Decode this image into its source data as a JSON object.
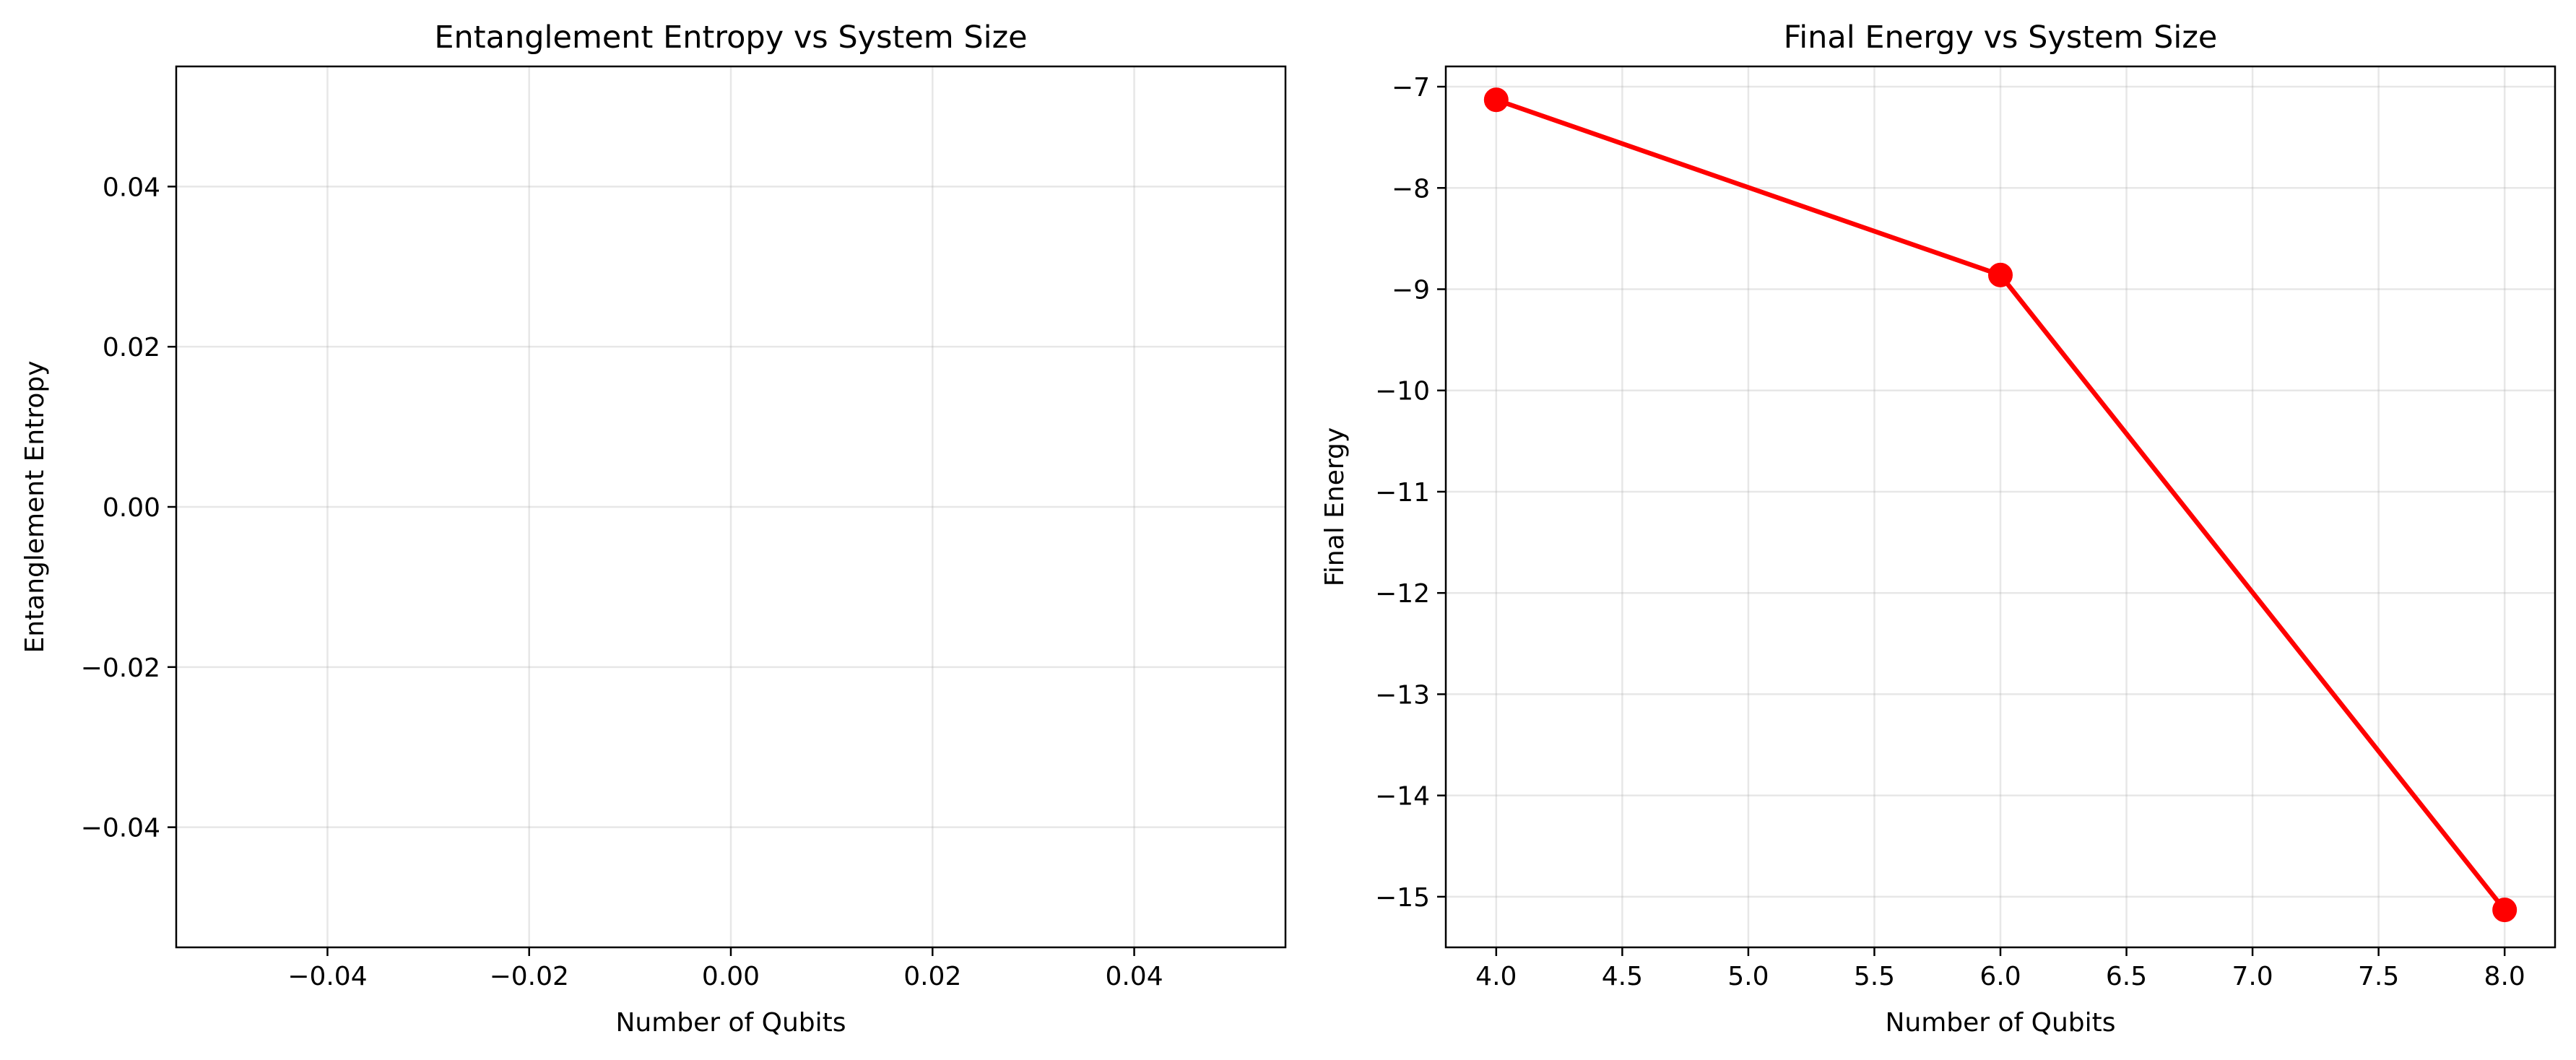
{
  "chart_data": [
    {
      "type": "scatter",
      "title": "Entanglement Entropy vs System Size",
      "xlabel": "Number of Qubits",
      "ylabel": "Entanglement Entropy",
      "xlim": [
        -0.055,
        0.055
      ],
      "ylim": [
        -0.055,
        0.055
      ],
      "xticks": [
        -0.04,
        -0.02,
        0.0,
        0.02,
        0.04
      ],
      "xtick_labels": [
        "−0.04",
        "−0.02",
        "0.00",
        "0.02",
        "0.04"
      ],
      "yticks": [
        0.04,
        0.02,
        0.0,
        -0.02,
        -0.04
      ],
      "ytick_labels": [
        "0.04",
        "0.02",
        "0.00",
        "−0.02",
        "−0.04"
      ],
      "grid": true,
      "series": []
    },
    {
      "type": "line",
      "title": "Final Energy vs System Size",
      "xlabel": "Number of Qubits",
      "ylabel": "Final Energy",
      "xlim": [
        3.8,
        8.2
      ],
      "ylim": [
        -15.5,
        -6.8
      ],
      "xticks": [
        4.0,
        4.5,
        5.0,
        5.5,
        6.0,
        6.5,
        7.0,
        7.5,
        8.0
      ],
      "xtick_labels": [
        "4.0",
        "4.5",
        "5.0",
        "5.5",
        "6.0",
        "6.5",
        "7.0",
        "7.5",
        "8.0"
      ],
      "yticks": [
        -7,
        -8,
        -9,
        -10,
        -11,
        -12,
        -13,
        -14,
        -15
      ],
      "ytick_labels": [
        "−7",
        "−8",
        "−9",
        "−10",
        "−11",
        "−12",
        "−13",
        "−14",
        "−15"
      ],
      "grid": true,
      "series": [
        {
          "x": [
            4,
            6,
            8
          ],
          "y": [
            -7.13,
            -8.86,
            -15.13
          ],
          "color": "#ff0000",
          "marker": "circle"
        }
      ]
    }
  ]
}
